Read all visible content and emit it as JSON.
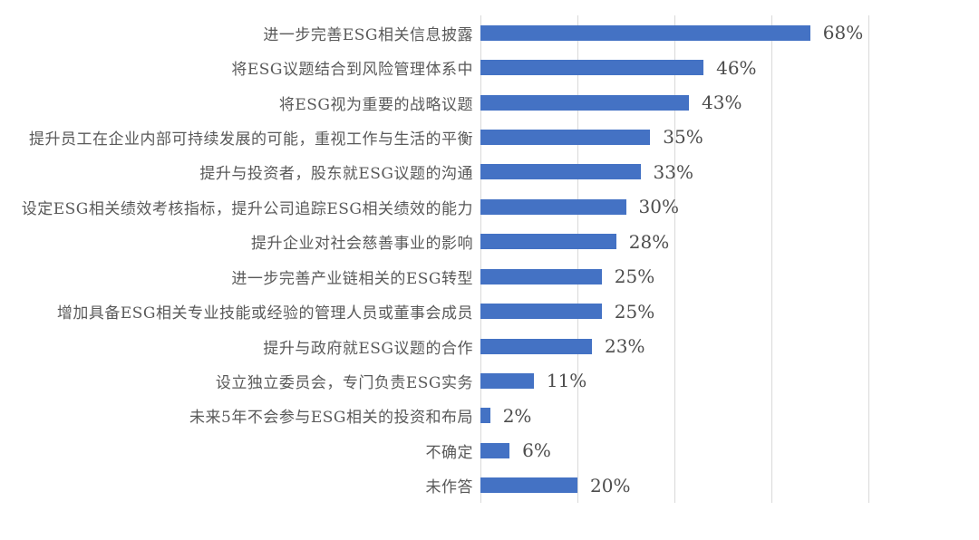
{
  "chart_data": {
    "type": "bar",
    "orientation": "horizontal",
    "title": "",
    "xlabel": "",
    "ylabel": "",
    "xlim": [
      0,
      80
    ],
    "gridline_values": [
      0,
      20,
      40,
      60,
      80
    ],
    "grid": "vertical gridlines, light gray",
    "legend_position": "none",
    "categories": [
      "进一步完善ESG相关信息披露",
      "将ESG议题结合到风险管理体系中",
      "将ESG视为重要的战略议题",
      "提升员工在企业内部可持续发展的可能，重视工作与生活的平衡",
      "提升与投资者，股东就ESG议题的沟通",
      "设定ESG相关绩效考核指标，提升公司追踪ESG相关绩效的能力",
      "提升企业对社会慈善事业的影响",
      "进一步完善产业链相关的ESG转型",
      "增加具备ESG相关专业技能或经验的管理人员或董事会成员",
      "提升与政府就ESG议题的合作",
      "设立独立委员会，专门负责ESG实务",
      "未来5年不会参与ESG相关的投资和布局",
      "不确定",
      "未作答"
    ],
    "values": [
      68,
      46,
      43,
      35,
      33,
      30,
      28,
      25,
      25,
      23,
      11,
      2,
      6,
      20
    ],
    "value_labels": [
      "68%",
      "46%",
      "43%",
      "35%",
      "33%",
      "30%",
      "28%",
      "25%",
      "25%",
      "23%",
      "11%",
      "2%",
      "6%",
      "20%"
    ],
    "colors": {
      "bar": "#4472C4",
      "gridline": "#d9d9d9",
      "category_text": "#595959",
      "value_text": "#4d4d4d",
      "background": "#ffffff"
    }
  }
}
